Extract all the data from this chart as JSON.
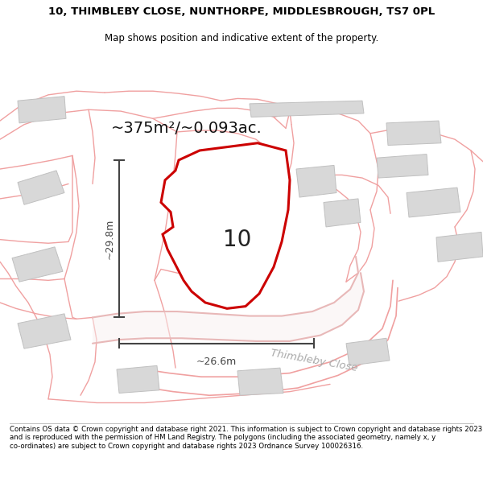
{
  "title_line1": "10, THIMBLEBY CLOSE, NUNTHORPE, MIDDLESBROUGH, TS7 0PL",
  "title_line2": "Map shows position and indicative extent of the property.",
  "area_text": "~375m²/~0.093ac.",
  "label_width": "~26.6m",
  "label_height": "~29.8m",
  "property_number": "10",
  "street_label": "Thimbleby Close",
  "footer_text": "Contains OS data © Crown copyright and database right 2021. This information is subject to Crown copyright and database rights 2023 and is reproduced with the permission of HM Land Registry. The polygons (including the associated geometry, namely x, y co-ordinates) are subject to Crown copyright and database rights 2023 Ordnance Survey 100026316.",
  "bg_color": "#ffffff",
  "map_bg": "#ffffff",
  "plot_fill": "#ffffff",
  "plot_edge": "#cc0000",
  "building_fill": "#d8d8d8",
  "building_edge": "#c0c0c0",
  "road_color": "#f0a0a0",
  "road_color2": "#e8b8b8",
  "dim_color": "#444444",
  "street_label_color": "#aaaaaa",
  "title_color": "#000000",
  "footer_color": "#000000"
}
